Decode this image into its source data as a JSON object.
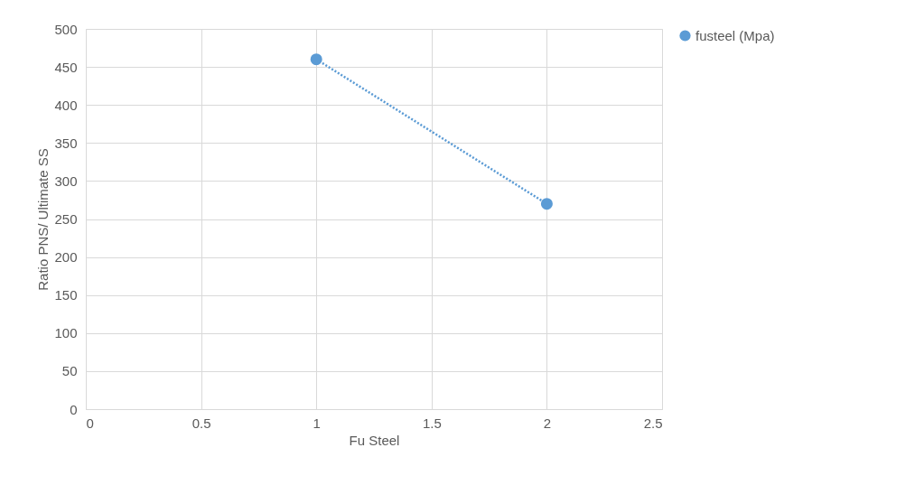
{
  "chart_data": {
    "type": "line",
    "xlabel": "Fu Steel",
    "ylabel": "Ratio PNS/ Ultimate SS",
    "x": [
      1,
      2
    ],
    "series": [
      {
        "name": "fusteel (Mpa)",
        "color": "#5b9bd5",
        "values": [
          460,
          270
        ]
      }
    ],
    "xlim": [
      0,
      2.5
    ],
    "xticks": [
      0,
      0.5,
      1,
      1.5,
      2,
      2.5
    ],
    "ylim": [
      0,
      500
    ],
    "yticks": [
      0,
      50,
      100,
      150,
      200,
      250,
      300,
      350,
      400,
      450,
      500
    ],
    "grid": true,
    "legend": "right",
    "marker": "circle",
    "line_style": "dotted"
  }
}
